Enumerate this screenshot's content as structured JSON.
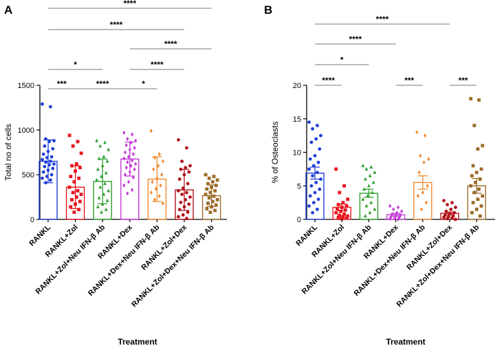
{
  "chart_data": [
    {
      "type": "bar",
      "panel": "A",
      "ylabel": "Total no of cells",
      "xlabel": "Treatment",
      "ylim": [
        0,
        1500
      ],
      "yticks": [
        0,
        500,
        1000,
        1500
      ],
      "categories": [
        "RANKL",
        "RANKL+Zol",
        "RANKL+Zol+Neu IFN-β Ab",
        "RANKL+Dex",
        "RANKL+Dex+Neu IFN-β Ab",
        "RANKL+Zol+Dex",
        "RANKL+Zol+Dex+Neu IFN-β Ab"
      ],
      "colors": [
        "#1f3fd8",
        "#e8141e",
        "#2ca02c",
        "#c43bd6",
        "#f28a2e",
        "#b0121a",
        "#9c6c2a"
      ],
      "markers": [
        "circle",
        "square",
        "triangle",
        "diamond",
        "diamond",
        "circle",
        "square"
      ],
      "values": [
        650,
        360,
        425,
        675,
        450,
        330,
        265
      ],
      "errors": [
        240,
        240,
        250,
        190,
        250,
        230,
        120
      ],
      "points": [
        [
          1290,
          1260,
          900,
          880,
          870,
          820,
          790,
          760,
          730,
          700,
          690,
          670,
          650,
          640,
          620,
          610,
          590,
          570,
          550,
          530,
          500,
          480,
          460,
          440,
          410
        ],
        [
          940,
          870,
          820,
          740,
          620,
          600,
          580,
          540,
          480,
          460,
          420,
          360,
          320,
          300,
          280,
          250,
          220,
          200,
          170,
          140,
          110,
          80
        ],
        [
          880,
          860,
          820,
          780,
          700,
          680,
          650,
          600,
          560,
          520,
          480,
          440,
          400,
          360,
          320,
          280,
          240,
          210,
          170,
          140,
          110,
          80
        ],
        [
          970,
          950,
          900,
          880,
          860,
          830,
          800,
          780,
          750,
          730,
          700,
          680,
          660,
          640,
          620,
          600,
          580,
          560,
          530,
          500,
          470,
          420,
          380,
          330,
          290
        ],
        [
          990,
          730,
          690,
          650,
          600,
          560,
          500,
          460,
          420,
          380,
          340,
          300,
          260,
          220,
          180
        ],
        [
          890,
          800,
          650,
          600,
          580,
          560,
          530,
          500,
          450,
          400,
          350,
          320,
          300,
          280,
          250,
          220,
          190,
          170,
          140,
          110,
          80,
          50,
          30,
          10
        ],
        [
          500,
          480,
          460,
          440,
          420,
          400,
          380,
          360,
          340,
          320,
          300,
          280,
          260,
          240,
          220,
          200,
          180,
          160,
          140,
          120,
          100,
          80
        ]
      ],
      "comparisons": [
        {
          "from": 0,
          "to": 6,
          "label": "****"
        },
        {
          "from": 0,
          "to": 5,
          "label": "****"
        },
        {
          "from": 3,
          "to": 6,
          "label": "****"
        },
        {
          "from": 0,
          "to": 2,
          "label": "*"
        },
        {
          "from": 3,
          "to": 5,
          "label": "****"
        },
        {
          "from": 0,
          "to": 1,
          "label": "***"
        },
        {
          "from": 1,
          "to": 3,
          "label": "****"
        },
        {
          "from": 3,
          "to": 4,
          "label": "*"
        }
      ]
    },
    {
      "type": "bar",
      "panel": "B",
      "ylabel": "% of Osteoclasts",
      "xlabel": "Treatment",
      "ylim": [
        0,
        20
      ],
      "yticks": [
        0,
        5,
        10,
        15,
        20
      ],
      "categories": [
        "RANKL",
        "RANKL+Zol",
        "RANKL+Zol+Neu IFN-β Ab",
        "RANKL+Dex",
        "RANKL+Dex+Neu IFN-β Ab",
        "RANKL+Zol+Dex",
        "RANKL+Zol+Dex+Neu IFN-β Ab"
      ],
      "colors": [
        "#1f3fd8",
        "#e8141e",
        "#2ca02c",
        "#c43bd6",
        "#f28a2e",
        "#b0121a",
        "#9c6c2a"
      ],
      "markers": [
        "circle",
        "square",
        "triangle",
        "diamond",
        "diamond",
        "circle",
        "square"
      ],
      "values": [
        6.9,
        1.8,
        3.9,
        0.7,
        5.5,
        0.9,
        5.0
      ],
      "errors": [
        0.9,
        0.5,
        0.6,
        0.2,
        1.0,
        0.2,
        1.1
      ],
      "points": [
        [
          14.5,
          14.0,
          13.5,
          12.5,
          12.0,
          11.5,
          10.5,
          9.5,
          9.0,
          8.5,
          8.0,
          7.5,
          7.0,
          6.5,
          6.0,
          5.5,
          5.0,
          4.5,
          4.0,
          3.5,
          3.0,
          2.5,
          2.0,
          1.5,
          1.0
        ],
        [
          7.5,
          5.0,
          4.0,
          3.0,
          2.5,
          2.2,
          2.0,
          1.8,
          1.6,
          1.4,
          1.2,
          1.0,
          0.8,
          0.6,
          0.5,
          0.4,
          0.3,
          0.2,
          0.1
        ],
        [
          8.0,
          7.8,
          7.5,
          7.0,
          6.5,
          6.0,
          5.5,
          5.0,
          4.5,
          4.0,
          3.5,
          3.0,
          2.5,
          2.0,
          1.5,
          1.0,
          0.5
        ],
        [
          2.0,
          1.8,
          1.5,
          1.2,
          1.0,
          0.8,
          0.6,
          0.5,
          0.4,
          0.3,
          0.2,
          0.1,
          0.0
        ],
        [
          13.0,
          12.5,
          9.5,
          9.0,
          8.5,
          7.0,
          5.0,
          4.0,
          3.5,
          2.5,
          1.5
        ],
        [
          2.8,
          2.5,
          2.2,
          1.8,
          1.5,
          1.2,
          1.0,
          0.8,
          0.6,
          0.5,
          0.4,
          0.3,
          0.2,
          0.1,
          0.0
        ],
        [
          18.0,
          17.8,
          14.0,
          11.0,
          10.5,
          8.0,
          7.5,
          7.0,
          6.5,
          6.0,
          5.5,
          5.0,
          4.5,
          4.0,
          3.5,
          3.0,
          2.5,
          2.0,
          1.5,
          1.0,
          0.5
        ]
      ],
      "comparisons": [
        {
          "from": 0,
          "to": 5,
          "label": "****"
        },
        {
          "from": 0,
          "to": 3,
          "label": "****"
        },
        {
          "from": 0,
          "to": 2,
          "label": "*"
        },
        {
          "from": 0,
          "to": 1,
          "label": "****"
        },
        {
          "from": 3,
          "to": 4,
          "label": "***"
        },
        {
          "from": 5,
          "to": 6,
          "label": "***"
        }
      ]
    }
  ]
}
